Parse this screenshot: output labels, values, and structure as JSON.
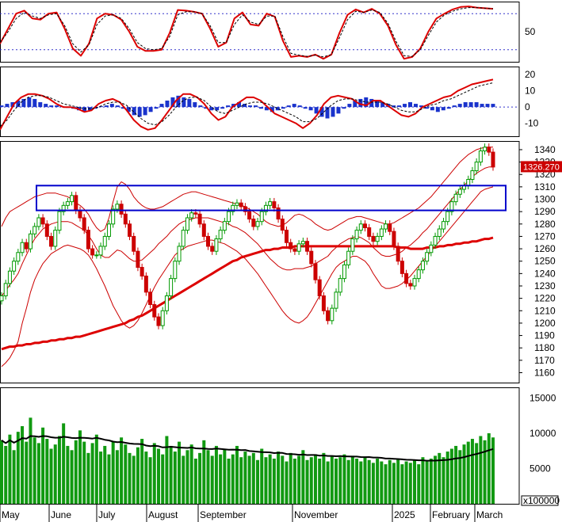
{
  "chart_data": [
    {
      "type": "line",
      "panel": "stochastic",
      "y_ticks": [
        "50"
      ],
      "ylim": [
        0,
        100
      ],
      "reference_levels": [
        20,
        80
      ],
      "series": [
        {
          "color": "#dd0000",
          "values": [
            30,
            55,
            80,
            85,
            72,
            70,
            80,
            82,
            55,
            22,
            10,
            30,
            72,
            80,
            78,
            70,
            50,
            25,
            18,
            18,
            20,
            48,
            86,
            85,
            83,
            80,
            55,
            25,
            32,
            72,
            82,
            62,
            60,
            80,
            75,
            35,
            8,
            10,
            8,
            12,
            5,
            12,
            48,
            78,
            87,
            82,
            88,
            80,
            60,
            28,
            5,
            8,
            22,
            50,
            72,
            80,
            87,
            91,
            92,
            90,
            89,
            88
          ]
        },
        {
          "color": "#000000",
          "dash": true,
          "values": [
            32,
            50,
            72,
            82,
            76,
            72,
            78,
            80,
            60,
            30,
            16,
            28,
            62,
            76,
            78,
            72,
            55,
            32,
            22,
            20,
            22,
            42,
            78,
            83,
            83,
            80,
            60,
            32,
            32,
            62,
            78,
            66,
            62,
            76,
            76,
            42,
            14,
            11,
            9,
            11,
            8,
            12,
            40,
            70,
            84,
            82,
            86,
            82,
            64,
            34,
            10,
            9,
            20,
            44,
            66,
            78,
            84,
            88,
            90,
            90,
            89,
            88
          ]
        }
      ]
    },
    {
      "type": "bar",
      "panel": "macd",
      "y_ticks": [
        "20",
        "10",
        "0",
        "-10"
      ],
      "ylim": [
        -18,
        25
      ],
      "histogram": [
        1,
        2,
        3,
        4,
        5,
        6,
        5,
        3,
        2,
        1,
        1,
        0.5,
        -0.5,
        -1,
        -2,
        -3,
        -2,
        -1,
        0.5,
        1,
        2,
        1,
        -1,
        -3,
        -5,
        -6,
        -5,
        -3,
        -1,
        2,
        4,
        6,
        7,
        6,
        5,
        3,
        1,
        -1,
        -2,
        -2,
        -1,
        1,
        2,
        3,
        2,
        1,
        1,
        -1,
        -2,
        -3,
        -2,
        -1,
        1,
        2,
        1,
        -1,
        -2,
        -4,
        -6,
        -7,
        -6,
        -4,
        -1,
        2,
        4,
        5,
        6,
        5,
        4,
        3,
        2,
        1,
        1,
        2,
        3,
        2,
        1,
        -1,
        -2,
        -3,
        -2,
        -1,
        1,
        2,
        3,
        3,
        3,
        2,
        2,
        2
      ],
      "series": [
        {
          "color": "#dd0000",
          "values": [
            -14,
            -6,
            2,
            6,
            8,
            8,
            7,
            5,
            2,
            0,
            0,
            -1,
            -3,
            -2,
            2,
            4,
            5,
            3,
            -2,
            -8,
            -12,
            -14,
            -13,
            -8,
            -2,
            4,
            8,
            8,
            6,
            2,
            -4,
            -8,
            -6,
            0,
            3,
            6,
            6,
            4,
            0,
            -4,
            -6,
            -8,
            -10,
            -13,
            -10,
            -5,
            2,
            6,
            7,
            6,
            5,
            2,
            1,
            4,
            4,
            1,
            -2,
            -5,
            -6,
            -4,
            0,
            2,
            4,
            6,
            7,
            10,
            12,
            14,
            15,
            16,
            17
          ]
        },
        {
          "color": "#000000",
          "dash": true,
          "values": [
            -12,
            -8,
            -2,
            3,
            6,
            7,
            7,
            6,
            4,
            2,
            1,
            0,
            -1,
            -1,
            0,
            2,
            3,
            3,
            1,
            -3,
            -7,
            -10,
            -11,
            -9,
            -5,
            0,
            4,
            6,
            6,
            4,
            0,
            -3,
            -4,
            -2,
            0,
            2,
            3,
            3,
            2,
            0,
            -2,
            -4,
            -6,
            -9,
            -9,
            -7,
            -3,
            1,
            4,
            5,
            5,
            4,
            3,
            3,
            3,
            2,
            0,
            -2,
            -3,
            -3,
            -1,
            1,
            2,
            4,
            5,
            7,
            9,
            11,
            13,
            14,
            15
          ]
        }
      ]
    },
    {
      "type": "candlestick",
      "panel": "price",
      "y_ticks": [
        "1340",
        "1330",
        "1320",
        "1310",
        "1300",
        "1290",
        "1280",
        "1270",
        "1260",
        "1250",
        "1240",
        "1230",
        "1220",
        "1210",
        "1200",
        "1190",
        "1180",
        "1170",
        "1160"
      ],
      "ylim": [
        1152,
        1347
      ],
      "x_ticks": [
        "May",
        "June",
        "July",
        "August",
        "September",
        "November",
        "2025",
        "February",
        "March"
      ],
      "last_price_label": "1326.270",
      "box": {
        "price_low": 1291,
        "price_high": 1311
      },
      "close": [
        1222,
        1232,
        1242,
        1250,
        1257,
        1265,
        1260,
        1272,
        1278,
        1285,
        1280,
        1270,
        1262,
        1275,
        1290,
        1295,
        1298,
        1303,
        1291,
        1285,
        1275,
        1260,
        1255,
        1255,
        1262,
        1270,
        1280,
        1292,
        1296,
        1288,
        1280,
        1270,
        1258,
        1245,
        1238,
        1225,
        1215,
        1205,
        1198,
        1210,
        1222,
        1236,
        1250,
        1262,
        1275,
        1285,
        1289,
        1288,
        1280,
        1270,
        1262,
        1258,
        1268,
        1275,
        1282,
        1290,
        1295,
        1297,
        1294,
        1290,
        1284,
        1278,
        1282,
        1290,
        1295,
        1298,
        1293,
        1284,
        1275,
        1265,
        1260,
        1258,
        1264,
        1266,
        1258,
        1248,
        1235,
        1222,
        1210,
        1202,
        1212,
        1225,
        1236,
        1247,
        1258,
        1268,
        1275,
        1280,
        1277,
        1270,
        1266,
        1270,
        1276,
        1280,
        1274,
        1262,
        1250,
        1240,
        1232,
        1230,
        1236,
        1243,
        1250,
        1257,
        1263,
        1270,
        1276,
        1282,
        1290,
        1298,
        1304,
        1308,
        1311,
        1316,
        1323,
        1330,
        1339,
        1342,
        1338,
        1326
      ],
      "ma_slow": [
        1179,
        1180,
        1181,
        1181,
        1182,
        1182,
        1183,
        1183,
        1184,
        1184,
        1185,
        1185,
        1186,
        1186,
        1187,
        1187,
        1188,
        1188,
        1189,
        1189,
        1190,
        1191,
        1192,
        1193,
        1194,
        1195,
        1196,
        1197,
        1198,
        1199,
        1200,
        1202,
        1203,
        1205,
        1206,
        1208,
        1210,
        1212,
        1214,
        1216,
        1218,
        1220,
        1222,
        1224,
        1226,
        1228,
        1230,
        1232,
        1234,
        1236,
        1238,
        1240,
        1242,
        1244,
        1246,
        1248,
        1250,
        1251,
        1253,
        1254,
        1255,
        1256,
        1257,
        1258,
        1259,
        1259,
        1260,
        1260,
        1261,
        1261,
        1261,
        1262,
        1262,
        1262,
        1262,
        1262,
        1262,
        1262,
        1262,
        1262,
        1262,
        1262,
        1262,
        1262,
        1262,
        1262,
        1262,
        1262,
        1262,
        1262,
        1262,
        1262,
        1262,
        1262,
        1262,
        1262,
        1261,
        1261,
        1261,
        1260,
        1260,
        1260,
        1260,
        1261,
        1261,
        1261,
        1262,
        1262,
        1263,
        1263,
        1264,
        1264,
        1265,
        1265,
        1266,
        1266,
        1267,
        1268,
        1268,
        1269
      ],
      "bb_upper": [
        1278,
        1285,
        1290,
        1292,
        1294,
        1296,
        1298,
        1300,
        1302,
        1303,
        1304,
        1305,
        1305,
        1305,
        1304,
        1303,
        1302,
        1300,
        1297,
        1295,
        1292,
        1288,
        1282,
        1277,
        1274,
        1276,
        1285,
        1298,
        1310,
        1314,
        1312,
        1308,
        1302,
        1298,
        1295,
        1293,
        1292,
        1292,
        1293,
        1294,
        1296,
        1298,
        1300,
        1302,
        1304,
        1305,
        1306,
        1306,
        1305,
        1304,
        1303,
        1302,
        1301,
        1300,
        1299,
        1298,
        1297,
        1296,
        1295,
        1294,
        1292,
        1290,
        1288,
        1285,
        1282,
        1280,
        1279,
        1278,
        1279,
        1281,
        1284,
        1287,
        1288,
        1287,
        1285,
        1283,
        1280,
        1278,
        1276,
        1275,
        1276,
        1278,
        1280,
        1282,
        1284,
        1285,
        1286,
        1286,
        1285,
        1284,
        1283,
        1282,
        1281,
        1280,
        1280,
        1281,
        1283,
        1285,
        1287,
        1289,
        1291,
        1293,
        1296,
        1299,
        1302,
        1306,
        1310,
        1314,
        1318,
        1322,
        1326,
        1330,
        1333,
        1336,
        1338,
        1340,
        1341,
        1342,
        1342,
        1342
      ],
      "bb_lower": [
        1165,
        1168,
        1172,
        1178,
        1185,
        1200,
        1212,
        1225,
        1235,
        1242,
        1248,
        1252,
        1256,
        1258,
        1260,
        1262,
        1263,
        1262,
        1261,
        1260,
        1258,
        1255,
        1250,
        1244,
        1237,
        1230,
        1222,
        1214,
        1208,
        1202,
        1198,
        1196,
        1198,
        1202,
        1208,
        1215,
        1222,
        1229,
        1235,
        1240,
        1245,
        1250,
        1255,
        1258,
        1260,
        1262,
        1263,
        1264,
        1265,
        1266,
        1267,
        1267,
        1266,
        1265,
        1264,
        1262,
        1260,
        1258,
        1255,
        1252,
        1248,
        1244,
        1240,
        1235,
        1230,
        1225,
        1220,
        1215,
        1210,
        1206,
        1203,
        1201,
        1200,
        1202,
        1205,
        1210,
        1216,
        1222,
        1228,
        1234,
        1240,
        1245,
        1248,
        1250,
        1252,
        1254,
        1254,
        1252,
        1250,
        1246,
        1240,
        1235,
        1230,
        1228,
        1228,
        1229,
        1230,
        1232,
        1235,
        1238,
        1242,
        1246,
        1250,
        1254,
        1258,
        1262,
        1266,
        1270,
        1274,
        1278,
        1282,
        1286,
        1290,
        1294,
        1298,
        1302,
        1306,
        1308,
        1309,
        1310
      ],
      "bb_middle": [
        1222,
        1226,
        1231,
        1235,
        1240,
        1248,
        1255,
        1262,
        1268,
        1272,
        1276,
        1278,
        1280,
        1281,
        1282,
        1282,
        1282,
        1281,
        1279,
        1277,
        1275,
        1271,
        1266,
        1260,
        1255,
        1253,
        1253,
        1256,
        1259,
        1258,
        1255,
        1252,
        1250,
        1250,
        1251,
        1254,
        1257,
        1260,
        1264,
        1267,
        1270,
        1274,
        1277,
        1280,
        1282,
        1283,
        1284,
        1285,
        1285,
        1285,
        1285,
        1284,
        1283,
        1282,
        1281,
        1280,
        1278,
        1277,
        1275,
        1273,
        1270,
        1267,
        1264,
        1260,
        1256,
        1252,
        1249,
        1246,
        1244,
        1243,
        1243,
        1244,
        1244,
        1244,
        1245,
        1246,
        1248,
        1250,
        1252,
        1254,
        1258,
        1261,
        1264,
        1266,
        1268,
        1269,
        1270,
        1269,
        1267,
        1265,
        1261,
        1258,
        1255,
        1254,
        1254,
        1255,
        1256,
        1258,
        1261,
        1263,
        1266,
        1269,
        1273,
        1276,
        1280,
        1284,
        1288,
        1292,
        1296,
        1300,
        1304,
        1308,
        1311,
        1315,
        1318,
        1321,
        1323,
        1325,
        1326,
        1326
      ]
    },
    {
      "type": "bar",
      "panel": "volume",
      "y_ticks": [
        "15000",
        "10000",
        "5000"
      ],
      "ylim": [
        0,
        16500
      ],
      "unit_label": "x100000",
      "values": [
        9000,
        8200,
        9800,
        7600,
        10200,
        11000,
        8800,
        12200,
        9400,
        8600,
        10800,
        9200,
        7800,
        8400,
        9600,
        11400,
        8200,
        7600,
        9000,
        10400,
        8800,
        7200,
        8600,
        9800,
        7400,
        8200,
        7000,
        8800,
        7600,
        9400,
        8400,
        7200,
        6800,
        8000,
        9200,
        7400,
        6600,
        8600,
        7800,
        7000,
        9600,
        8200,
        7400,
        8800,
        6800,
        7600,
        8400,
        6400,
        7200,
        9000,
        7600,
        6800,
        8200,
        7000,
        7800,
        6400,
        7000,
        8200,
        6600,
        7400,
        6800,
        7200,
        6200,
        7800,
        6600,
        7000,
        6400,
        7400,
        6800,
        6000,
        7200,
        6400,
        6800,
        7600,
        6200,
        6600,
        7000,
        6400,
        7200,
        6000,
        6800,
        6400,
        6600,
        7000,
        6200,
        6800,
        6400,
        6000,
        6600,
        6200,
        5800,
        6400,
        6000,
        5600,
        6200,
        5800,
        6400,
        5600,
        6000,
        5800,
        6200,
        5600,
        6600,
        6000,
        6400,
        6800,
        7200,
        6600,
        7400,
        7800,
        8200,
        7600,
        8400,
        8800,
        9200,
        8600,
        9600,
        9000,
        10000,
        9400
      ]
    }
  ]
}
